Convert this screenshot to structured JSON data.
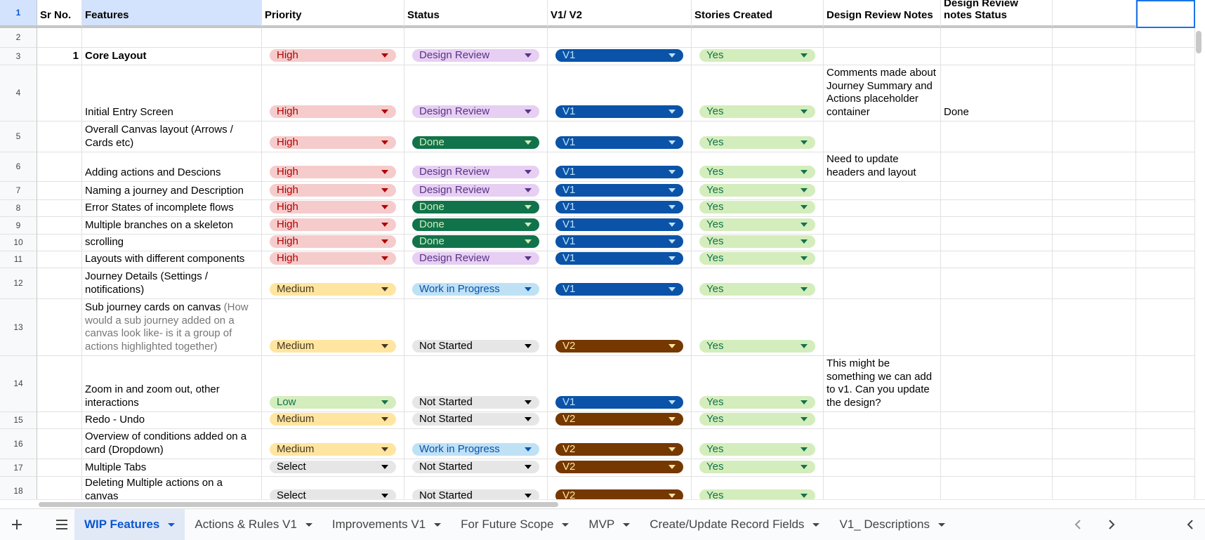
{
  "header": {
    "num": "1",
    "sr": "Sr No.",
    "feature": "Features",
    "priority": "Priority",
    "status": "Status",
    "version": "V1/ V2",
    "stories": "Stories Created",
    "notes": "Design Review Notes",
    "notes_status": "Design Review notes Status"
  },
  "rows": [
    {
      "num": "2"
    },
    {
      "num": "3",
      "sr": "1",
      "feature": "Core Layout",
      "priority": "High",
      "status": "Design Review",
      "version": "V1",
      "stories": "Yes"
    },
    {
      "num": "4",
      "feature": "Initial Entry Screen",
      "priority": "High",
      "status": "Design Review",
      "version": "V1",
      "stories": "Yes",
      "notes": "Comments made about Journey Summary and Actions placeholder container",
      "notes_status": "Done"
    },
    {
      "num": "5",
      "feature": "Overall Canvas layout (Arrows / Cards etc)",
      "priority": "High",
      "status": "Done",
      "version": "V1",
      "stories": "Yes"
    },
    {
      "num": "6",
      "feature": "Adding actions and Descions",
      "priority": "High",
      "status": "Design Review",
      "version": "V1",
      "stories": "Yes",
      "notes": "Need to update headers and layout"
    },
    {
      "num": "7",
      "feature": "Naming a journey and Description",
      "priority": "High",
      "status": "Design Review",
      "version": "V1",
      "stories": "Yes"
    },
    {
      "num": "8",
      "feature": "Error States of incomplete flows",
      "priority": "High",
      "status": "Done",
      "version": "V1",
      "stories": "Yes"
    },
    {
      "num": "9",
      "feature": "Multiple branches on a skeleton",
      "priority": "High",
      "status": "Done",
      "version": "V1",
      "stories": "Yes"
    },
    {
      "num": "10",
      "feature": "scrolling",
      "priority": "High",
      "status": "Done",
      "version": "V1",
      "stories": "Yes"
    },
    {
      "num": "11",
      "feature": "Layouts with different components",
      "priority": "High",
      "status": "Design Review",
      "version": "V1",
      "stories": "Yes"
    },
    {
      "num": "12",
      "feature": "Journey Details (Settings / notifications)",
      "priority": "Medium",
      "status": "Work in Progress",
      "version": "V1",
      "stories": "Yes"
    },
    {
      "num": "13",
      "feature": "Sub journey cards on canvas ",
      "feature_note": "(How would a sub journey added on a canvas look like- is it a group of actions highlighted together)",
      "priority": "Medium",
      "status": "Not Started",
      "version": "V2",
      "stories": "Yes"
    },
    {
      "num": "14",
      "feature": "Zoom in and zoom out,  other interactions",
      "priority": "Low",
      "status": "Not Started",
      "version": "V1",
      "stories": "Yes",
      "notes": "This might be something we can add to v1. Can you update the design?"
    },
    {
      "num": "15",
      "feature": "Redo - Undo",
      "priority": "Medium",
      "status": "Not Started",
      "version": "V2",
      "stories": "Yes"
    },
    {
      "num": "16",
      "feature": "Overview of conditions added on a card (Dropdown)",
      "priority": "Medium",
      "status": "Work in Progress",
      "version": "V2",
      "stories": "Yes"
    },
    {
      "num": "17",
      "feature": "Multiple Tabs",
      "priority": "Select",
      "status": "Not Started",
      "version": "V2",
      "stories": "Yes"
    },
    {
      "num": "18",
      "feature": "Deleting Multiple actions on a canvas",
      "priority": "Select",
      "status": "Not Started",
      "version": "V2",
      "stories": "Yes"
    }
  ],
  "chip_styles": {
    "High": [
      "#f6cbcb",
      "#b10202"
    ],
    "Medium": [
      "#ffe5a0",
      "#473821"
    ],
    "Low": [
      "#d4edbc",
      "#11734b"
    ],
    "Select": [
      "#e6e6e6",
      "#000000"
    ],
    "Design Review": [
      "#e6cff2",
      "#5a3286"
    ],
    "Done": [
      "#11734b",
      "#d4edbc"
    ],
    "Work in Progress": [
      "#bfe1f6",
      "#0a53a8"
    ],
    "Not Started": [
      "#e6e6e6",
      "#000000"
    ],
    "V1": [
      "#0a53a8",
      "#bfe1f6"
    ],
    "V2": [
      "#753800",
      "#ffe5a0"
    ],
    "Yes": [
      "#d4edbc",
      "#11734b"
    ]
  },
  "tabs": [
    "WIP Features",
    "Actions & Rules V1",
    "Improvements V1",
    "For Future Scope",
    "MVP",
    "Create/Update Record Fields",
    "V1_ Descriptions"
  ]
}
